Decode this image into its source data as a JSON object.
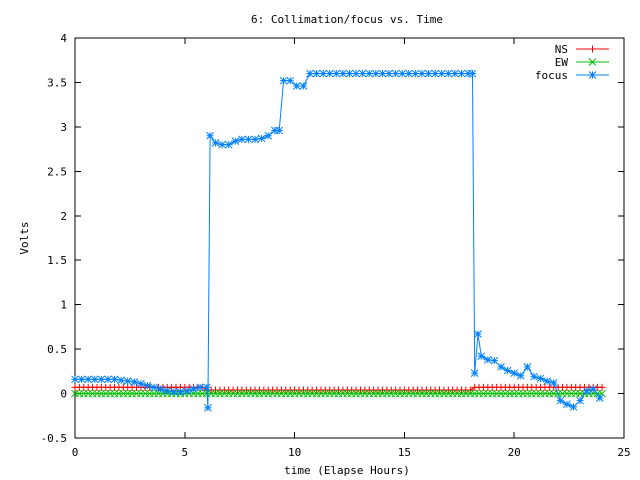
{
  "chart_data": {
    "type": "line",
    "title": "6: Collimation/focus vs. Time",
    "xlabel": "time (Elapse Hours)",
    "ylabel": "Volts",
    "xlim": [
      0,
      25
    ],
    "ylim": [
      -0.5,
      4
    ],
    "x_ticks": [
      0,
      5,
      10,
      15,
      20,
      25
    ],
    "x_tick_labels": [
      "0",
      "5",
      "10",
      "15",
      "20",
      "25"
    ],
    "y_ticks": [
      -0.5,
      0,
      0.5,
      1,
      1.5,
      2,
      2.5,
      3,
      3.5,
      4
    ],
    "y_tick_labels": [
      "-0.5",
      "0",
      "0.5",
      "1",
      "1.5",
      "2",
      "2.5",
      "3",
      "3.5",
      "4"
    ],
    "grid": false,
    "legend_position": "top-right",
    "series": [
      {
        "name": "NS",
        "color": "#ff0000",
        "marker": "plus",
        "x": [
          0,
          0.2,
          0.4,
          0.6,
          0.8,
          1,
          1.2,
          1.4,
          1.6,
          1.8,
          2,
          2.2,
          2.4,
          2.6,
          2.8,
          3,
          3.2,
          3.4,
          3.6,
          3.8,
          4,
          4.2,
          4.4,
          4.6,
          4.8,
          5,
          5.2,
          5.4,
          5.6,
          5.8,
          6,
          6.2,
          6.4,
          6.6,
          6.8,
          7,
          7.2,
          7.4,
          7.6,
          7.8,
          8,
          8.2,
          8.4,
          8.6,
          8.8,
          9,
          9.2,
          9.4,
          9.6,
          9.8,
          10,
          10.2,
          10.4,
          10.6,
          10.8,
          11,
          11.2,
          11.4,
          11.6,
          11.8,
          12,
          12.2,
          12.4,
          12.6,
          12.8,
          13,
          13.2,
          13.4,
          13.6,
          13.8,
          14,
          14.2,
          14.4,
          14.6,
          14.8,
          15,
          15.2,
          15.4,
          15.6,
          15.8,
          16,
          16.2,
          16.4,
          16.6,
          16.8,
          17,
          17.2,
          17.4,
          17.6,
          17.8,
          18,
          18.2,
          18.4,
          18.6,
          18.8,
          19,
          19.2,
          19.4,
          19.6,
          19.8,
          20,
          20.2,
          20.4,
          20.6,
          20.8,
          21,
          21.2,
          21.4,
          21.6,
          21.8,
          22,
          22.2,
          22.4,
          22.6,
          22.8,
          23,
          23.2,
          23.4,
          23.6,
          23.8,
          24
        ],
        "values": [
          0.07,
          0.07,
          0.07,
          0.07,
          0.07,
          0.07,
          0.07,
          0.07,
          0.07,
          0.07,
          0.07,
          0.07,
          0.07,
          0.07,
          0.07,
          0.07,
          0.07,
          0.07,
          0.07,
          0.07,
          0.07,
          0.07,
          0.07,
          0.07,
          0.07,
          0.07,
          0.07,
          0.07,
          0.07,
          0.07,
          0.04,
          0.04,
          0.04,
          0.04,
          0.04,
          0.04,
          0.04,
          0.04,
          0.04,
          0.04,
          0.04,
          0.04,
          0.04,
          0.04,
          0.04,
          0.04,
          0.04,
          0.04,
          0.04,
          0.04,
          0.04,
          0.04,
          0.04,
          0.04,
          0.04,
          0.04,
          0.04,
          0.04,
          0.04,
          0.04,
          0.04,
          0.04,
          0.04,
          0.04,
          0.04,
          0.04,
          0.04,
          0.04,
          0.04,
          0.04,
          0.04,
          0.04,
          0.04,
          0.04,
          0.04,
          0.04,
          0.04,
          0.04,
          0.04,
          0.04,
          0.04,
          0.04,
          0.04,
          0.04,
          0.04,
          0.04,
          0.04,
          0.04,
          0.04,
          0.04,
          0.04,
          0.07,
          0.07,
          0.07,
          0.07,
          0.07,
          0.07,
          0.07,
          0.07,
          0.07,
          0.07,
          0.07,
          0.07,
          0.07,
          0.07,
          0.07,
          0.07,
          0.07,
          0.07,
          0.07,
          0.07,
          0.07,
          0.07,
          0.07,
          0.07,
          0.07,
          0.07,
          0.07,
          0.07,
          0.07,
          0.07
        ]
      },
      {
        "name": "EW",
        "color": "#00c000",
        "marker": "cross",
        "x": [
          0,
          0.2,
          0.4,
          0.6,
          0.8,
          1,
          1.2,
          1.4,
          1.6,
          1.8,
          2,
          2.2,
          2.4,
          2.6,
          2.8,
          3,
          3.2,
          3.4,
          3.6,
          3.8,
          4,
          4.2,
          4.4,
          4.6,
          4.8,
          5,
          5.2,
          5.4,
          5.6,
          5.8,
          6,
          6.2,
          6.4,
          6.6,
          6.8,
          7,
          7.2,
          7.4,
          7.6,
          7.8,
          8,
          8.2,
          8.4,
          8.6,
          8.8,
          9,
          9.2,
          9.4,
          9.6,
          9.8,
          10,
          10.2,
          10.4,
          10.6,
          10.8,
          11,
          11.2,
          11.4,
          11.6,
          11.8,
          12,
          12.2,
          12.4,
          12.6,
          12.8,
          13,
          13.2,
          13.4,
          13.6,
          13.8,
          14,
          14.2,
          14.4,
          14.6,
          14.8,
          15,
          15.2,
          15.4,
          15.6,
          15.8,
          16,
          16.2,
          16.4,
          16.6,
          16.8,
          17,
          17.2,
          17.4,
          17.6,
          17.8,
          18,
          18.2,
          18.4,
          18.6,
          18.8,
          19,
          19.2,
          19.4,
          19.6,
          19.8,
          20,
          20.2,
          20.4,
          20.6,
          20.8,
          21,
          21.2,
          21.4,
          21.6,
          21.8,
          22,
          22.2,
          22.4,
          22.6,
          22.8,
          23,
          23.2,
          23.4,
          23.6,
          23.8,
          24
        ],
        "values": [
          0.0,
          0.0,
          0.0,
          0.0,
          0.0,
          0.0,
          0.0,
          0.0,
          0.0,
          0.0,
          0.0,
          0.0,
          0.0,
          0.0,
          0.0,
          0.0,
          0.0,
          0.0,
          0.0,
          0.0,
          0.0,
          0.0,
          0.0,
          0.0,
          0.0,
          0.0,
          0.0,
          0.0,
          0.0,
          0.0,
          0.0,
          0.0,
          0.0,
          0.0,
          0.0,
          0.0,
          0.0,
          0.0,
          0.0,
          0.0,
          0.0,
          0.0,
          0.0,
          0.0,
          0.0,
          0.0,
          0.0,
          0.0,
          0.0,
          0.0,
          0.0,
          0.0,
          0.0,
          0.0,
          0.0,
          0.0,
          0.0,
          0.0,
          0.0,
          0.0,
          0.0,
          0.0,
          0.0,
          0.0,
          0.0,
          0.0,
          0.0,
          0.0,
          0.0,
          0.0,
          0.0,
          0.0,
          0.0,
          0.0,
          0.0,
          0.0,
          0.0,
          0.0,
          0.0,
          0.0,
          0.0,
          0.0,
          0.0,
          0.0,
          0.0,
          0.0,
          0.0,
          0.0,
          0.0,
          0.0,
          0.0,
          0.0,
          0.0,
          0.0,
          0.0,
          0.0,
          0.0,
          0.0,
          0.0,
          0.0,
          0.0,
          0.0,
          0.0,
          0.0,
          0.0,
          0.0,
          0.0,
          0.0,
          0.0,
          0.0,
          0.0,
          0.0,
          0.0,
          0.0,
          0.0,
          0.0,
          0.0,
          0.0,
          0.0,
          0.0,
          0.0
        ]
      },
      {
        "name": "focus",
        "color": "#0080ff",
        "marker": "star",
        "x": [
          0,
          0.3,
          0.6,
          0.9,
          1.2,
          1.5,
          1.8,
          2.1,
          2.4,
          2.7,
          3.0,
          3.3,
          3.6,
          3.9,
          4.2,
          4.5,
          4.8,
          5.1,
          5.4,
          5.7,
          6.0,
          6.05,
          6.15,
          6.4,
          6.7,
          7.0,
          7.3,
          7.6,
          7.9,
          8.2,
          8.5,
          8.8,
          9.1,
          9.3,
          9.5,
          9.8,
          10.1,
          10.4,
          10.7,
          11.0,
          11.3,
          11.6,
          11.9,
          12.2,
          12.5,
          12.8,
          13.1,
          13.4,
          13.7,
          14.0,
          14.3,
          14.6,
          14.9,
          15.2,
          15.5,
          15.8,
          16.1,
          16.4,
          16.7,
          17.0,
          17.3,
          17.6,
          17.9,
          18.1,
          18.2,
          18.35,
          18.5,
          18.8,
          19.1,
          19.4,
          19.7,
          20.0,
          20.3,
          20.6,
          20.9,
          21.2,
          21.5,
          21.8,
          22.1,
          22.4,
          22.7,
          23.0,
          23.3,
          23.6,
          23.9
        ],
        "values": [
          0.16,
          0.16,
          0.16,
          0.16,
          0.16,
          0.16,
          0.16,
          0.15,
          0.14,
          0.13,
          0.11,
          0.09,
          0.07,
          0.05,
          0.03,
          0.02,
          0.02,
          0.03,
          0.05,
          0.07,
          0.07,
          -0.16,
          2.9,
          2.82,
          2.8,
          2.8,
          2.84,
          2.86,
          2.86,
          2.86,
          2.87,
          2.9,
          2.96,
          2.96,
          3.52,
          3.52,
          3.46,
          3.46,
          3.6,
          3.6,
          3.6,
          3.6,
          3.6,
          3.6,
          3.6,
          3.6,
          3.6,
          3.6,
          3.6,
          3.6,
          3.6,
          3.6,
          3.6,
          3.6,
          3.6,
          3.6,
          3.6,
          3.6,
          3.6,
          3.6,
          3.6,
          3.6,
          3.6,
          3.6,
          0.23,
          0.67,
          0.42,
          0.38,
          0.37,
          0.3,
          0.26,
          0.23,
          0.2,
          0.3,
          0.19,
          0.17,
          0.14,
          0.12,
          -0.08,
          -0.12,
          -0.15,
          -0.08,
          0.03,
          0.05,
          -0.05
        ]
      }
    ]
  }
}
